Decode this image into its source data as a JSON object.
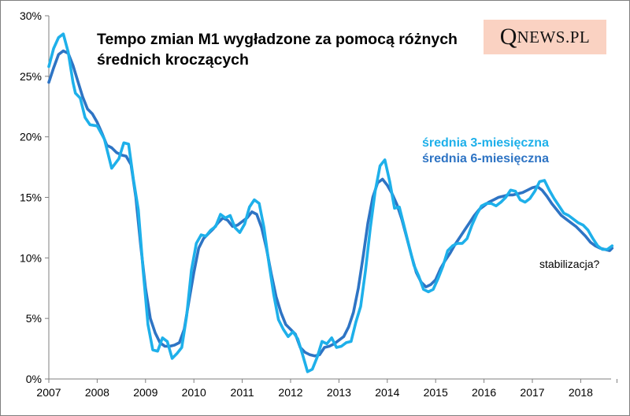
{
  "chart_data": {
    "type": "line",
    "title": "Tempo zmian M1  wygładzone za pomocą różnych średnich kroczących",
    "watermark": "QNEWS.PL",
    "xlabel": "",
    "ylabel": "",
    "ylim": [
      0,
      30
    ],
    "xlim": [
      2007,
      2018.75
    ],
    "yticks": [
      "0%",
      "5%",
      "10%",
      "15%",
      "20%",
      "25%",
      "30%"
    ],
    "xticks": [
      "2007",
      "2008",
      "2009",
      "2010",
      "2011",
      "2012",
      "2013",
      "2014",
      "2015",
      "2016",
      "2017",
      "2018"
    ],
    "grid": false,
    "legend_position": "right, middle-upper",
    "annotation": "stabilizacja?",
    "series": [
      {
        "name": "średnia 3-miesięczna",
        "color": "#1eb0ea",
        "x": [
          2007.0,
          2007.1,
          2007.2,
          2007.3,
          2007.4,
          2007.5,
          2007.55,
          2007.65,
          2007.75,
          2007.85,
          2008.0,
          2008.15,
          2008.3,
          2008.45,
          2008.55,
          2008.65,
          2008.75,
          2008.85,
          2008.95,
          2009.05,
          2009.15,
          2009.25,
          2009.35,
          2009.45,
          2009.55,
          2009.65,
          2009.75,
          2009.85,
          2009.95,
          2010.05,
          2010.15,
          2010.25,
          2010.35,
          2010.45,
          2010.55,
          2010.65,
          2010.75,
          2010.85,
          2010.95,
          2011.05,
          2011.15,
          2011.25,
          2011.35,
          2011.45,
          2011.55,
          2011.65,
          2011.75,
          2011.85,
          2011.95,
          2012.05,
          2012.15,
          2012.25,
          2012.35,
          2012.45,
          2012.55,
          2012.65,
          2012.75,
          2012.85,
          2012.95,
          2013.05,
          2013.15,
          2013.25,
          2013.35,
          2013.45,
          2013.55,
          2013.65,
          2013.75,
          2013.85,
          2013.95,
          2014.05,
          2014.15,
          2014.25,
          2014.35,
          2014.45,
          2014.55,
          2014.65,
          2014.75,
          2014.85,
          2014.95,
          2015.05,
          2015.15,
          2015.25,
          2015.35,
          2015.45,
          2015.55,
          2015.65,
          2015.75,
          2015.85,
          2015.95,
          2016.05,
          2016.15,
          2016.25,
          2016.35,
          2016.45,
          2016.55,
          2016.65,
          2016.75,
          2016.85,
          2016.95,
          2017.05,
          2017.15,
          2017.25,
          2017.35,
          2017.45,
          2017.55,
          2017.65,
          2017.75,
          2017.85,
          2017.95,
          2018.05,
          2018.15,
          2018.25,
          2018.35,
          2018.45,
          2018.55,
          2018.65
        ],
        "y": [
          25.8,
          27.3,
          28.2,
          28.5,
          27.0,
          24.5,
          23.6,
          23.2,
          21.6,
          21.0,
          20.9,
          19.8,
          17.4,
          18.2,
          19.5,
          19.4,
          16.5,
          14.0,
          9.0,
          4.5,
          2.4,
          2.3,
          3.4,
          3.1,
          1.7,
          2.1,
          2.6,
          5.2,
          9.0,
          11.2,
          11.9,
          11.8,
          12.3,
          12.6,
          13.6,
          13.3,
          13.5,
          12.5,
          12.1,
          12.8,
          14.2,
          14.8,
          14.5,
          12.5,
          9.6,
          7.0,
          4.9,
          4.1,
          3.5,
          3.9,
          3.3,
          2.0,
          0.6,
          0.8,
          1.8,
          3.1,
          2.9,
          3.4,
          2.6,
          2.7,
          3.0,
          3.1,
          4.7,
          6.0,
          9.0,
          12.5,
          15.5,
          17.6,
          18.1,
          16.3,
          14.1,
          14.2,
          12.6,
          11.0,
          9.4,
          8.5,
          7.4,
          7.2,
          7.4,
          8.3,
          9.3,
          10.6,
          11.0,
          11.2,
          11.2,
          11.6,
          12.7,
          13.6,
          14.3,
          14.5,
          14.5,
          14.3,
          14.6,
          15.0,
          15.6,
          15.5,
          14.8,
          14.6,
          14.9,
          15.5,
          16.3,
          16.4,
          15.6,
          14.9,
          14.3,
          13.7,
          13.5,
          13.2,
          12.9,
          12.7,
          12.3,
          11.6,
          11.0,
          10.7,
          10.7,
          11.0
        ]
      },
      {
        "name": "średnia 6-miesięczna",
        "color": "#2e74c4",
        "x": [
          2007.0,
          2007.1,
          2007.2,
          2007.3,
          2007.4,
          2007.5,
          2007.6,
          2007.7,
          2007.8,
          2007.9,
          2008.0,
          2008.1,
          2008.2,
          2008.3,
          2008.4,
          2008.5,
          2008.6,
          2008.7,
          2008.8,
          2008.9,
          2009.0,
          2009.1,
          2009.2,
          2009.3,
          2009.4,
          2009.5,
          2009.6,
          2009.7,
          2009.8,
          2009.9,
          2010.0,
          2010.1,
          2010.2,
          2010.3,
          2010.4,
          2010.5,
          2010.6,
          2010.7,
          2010.8,
          2010.9,
          2011.0,
          2011.1,
          2011.2,
          2011.3,
          2011.4,
          2011.5,
          2011.6,
          2011.7,
          2011.8,
          2011.9,
          2012.0,
          2012.1,
          2012.2,
          2012.3,
          2012.4,
          2012.5,
          2012.6,
          2012.7,
          2012.8,
          2012.9,
          2013.0,
          2013.1,
          2013.2,
          2013.3,
          2013.4,
          2013.5,
          2013.6,
          2013.7,
          2013.8,
          2013.9,
          2014.0,
          2014.1,
          2014.2,
          2014.3,
          2014.4,
          2014.5,
          2014.6,
          2014.7,
          2014.8,
          2014.9,
          2015.0,
          2015.1,
          2015.2,
          2015.3,
          2015.4,
          2015.5,
          2015.6,
          2015.7,
          2015.8,
          2015.9,
          2016.0,
          2016.1,
          2016.2,
          2016.3,
          2016.4,
          2016.5,
          2016.6,
          2016.7,
          2016.8,
          2016.9,
          2017.0,
          2017.1,
          2017.2,
          2017.3,
          2017.4,
          2017.5,
          2017.6,
          2017.7,
          2017.8,
          2017.9,
          2018.0,
          2018.1,
          2018.2,
          2018.3,
          2018.4,
          2018.5,
          2018.6,
          2018.65
        ],
        "y": [
          24.5,
          25.7,
          26.8,
          27.1,
          26.9,
          25.9,
          24.6,
          23.3,
          22.3,
          21.9,
          21.2,
          20.3,
          19.3,
          19.1,
          18.7,
          18.5,
          18.4,
          17.7,
          15.0,
          11.0,
          7.5,
          5.0,
          3.8,
          3.0,
          2.7,
          2.7,
          2.8,
          3.0,
          4.1,
          6.5,
          8.8,
          10.8,
          11.6,
          12.0,
          12.4,
          12.9,
          13.3,
          13.1,
          12.6,
          12.7,
          13.0,
          13.3,
          13.8,
          13.6,
          12.5,
          10.8,
          8.7,
          6.8,
          5.5,
          4.5,
          4.1,
          3.7,
          2.6,
          2.2,
          2.0,
          1.9,
          2.0,
          2.6,
          2.7,
          2.9,
          3.2,
          3.5,
          4.3,
          5.5,
          7.5,
          10.1,
          12.9,
          15.0,
          16.2,
          16.5,
          16.0,
          15.3,
          14.4,
          13.2,
          11.7,
          10.2,
          8.8,
          8.0,
          7.6,
          7.8,
          8.2,
          9.1,
          9.8,
          10.4,
          11.1,
          11.7,
          12.3,
          12.9,
          13.5,
          14.0,
          14.3,
          14.6,
          14.8,
          15.0,
          15.1,
          15.2,
          15.2,
          15.3,
          15.4,
          15.6,
          15.8,
          15.9,
          15.6,
          15.1,
          14.5,
          14.0,
          13.5,
          13.2,
          12.9,
          12.6,
          12.2,
          11.8,
          11.3,
          11.0,
          10.8,
          10.7,
          10.6,
          10.8
        ]
      }
    ]
  }
}
